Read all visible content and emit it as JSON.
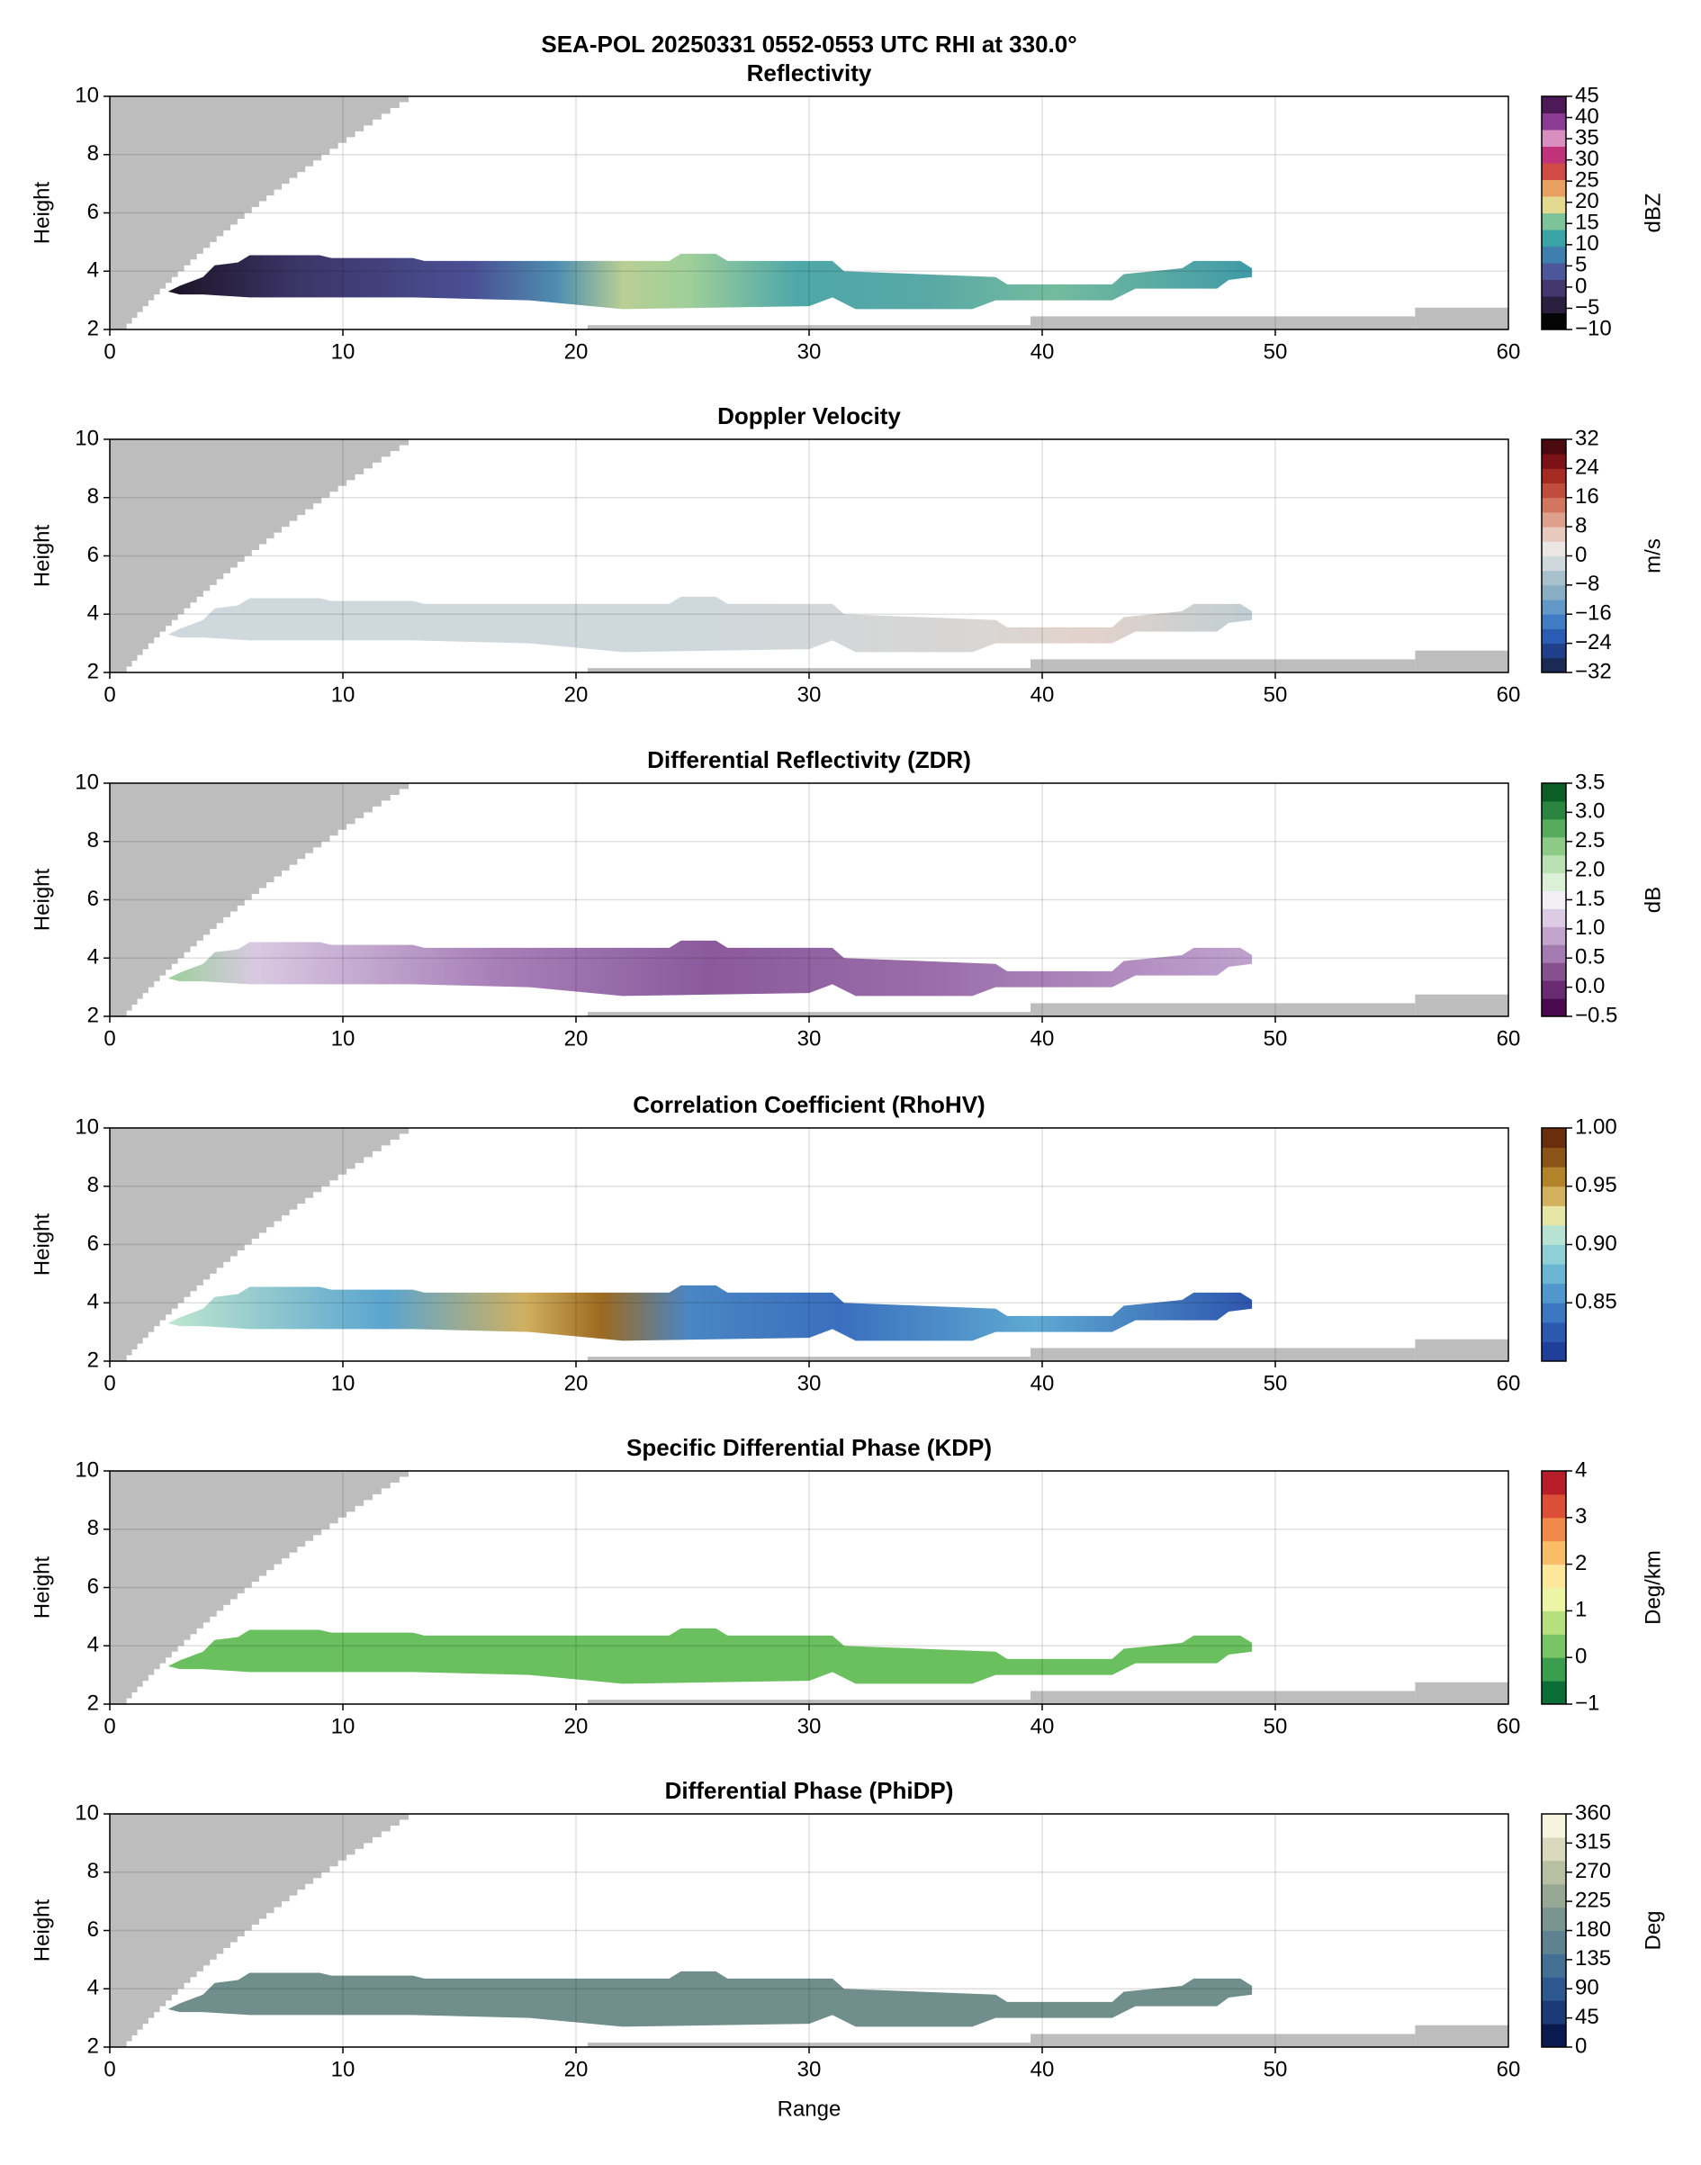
{
  "title": "SEA-POL 20250331 0552-0553 UTC RHI at 330.0°",
  "chart_data": [
    {
      "type": "contour",
      "title": "Reflectivity",
      "ylabel": "Height",
      "xlim": [
        0,
        60
      ],
      "xticks": [
        0,
        10,
        20,
        30,
        40,
        50
      ],
      "ylim": [
        2,
        10
      ],
      "yticks": [
        2,
        4,
        6,
        8,
        10
      ],
      "grid": true,
      "clabel": "dBZ",
      "clim": [
        -10,
        45
      ],
      "cticks": [
        {
          "value": -10,
          "label": "−10"
        },
        {
          "value": -5,
          "label": "−5"
        },
        0,
        5,
        10,
        15,
        20,
        25,
        30,
        35,
        40,
        45
      ],
      "colors": [
        "#050505",
        "#2a1f3f",
        "#43386e",
        "#4c569b",
        "#3f7fae",
        "#3aa3a5",
        "#7cc39a",
        "#e3d98f",
        "#e8a062",
        "#d14a46",
        "#c0327a",
        "#d88fc0",
        "#8a3b93",
        "#4b1a57"
      ]
    },
    {
      "type": "contour",
      "title": "Doppler Velocity",
      "ylabel": "Height",
      "xlim": [
        0,
        60
      ],
      "xticks": [
        0,
        10,
        20,
        30,
        40,
        50
      ],
      "ylim": [
        2,
        10
      ],
      "yticks": [
        2,
        4,
        6,
        8,
        10
      ],
      "grid": true,
      "clabel": "m/s",
      "clim": [
        -32,
        32
      ],
      "cticks": [
        {
          "value": -32,
          "label": "−32"
        },
        {
          "value": -24,
          "label": "−24"
        },
        {
          "value": -16,
          "label": "−16"
        },
        {
          "value": -8,
          "label": "−8"
        },
        0,
        8,
        16,
        24,
        32
      ],
      "colors": [
        "#1a2a52",
        "#1f3f8a",
        "#2a5cb3",
        "#3f7cc4",
        "#6198c6",
        "#89aec4",
        "#a8c0cc",
        "#cfd8dc",
        "#ebe6e4",
        "#e8c9bd",
        "#dea08d",
        "#d27660",
        "#c04d3b",
        "#a52a22",
        "#7d1216",
        "#4a0a0f"
      ]
    },
    {
      "type": "contour",
      "title": "Differential Reflectivity (ZDR)",
      "ylabel": "Height",
      "xlim": [
        0,
        60
      ],
      "xticks": [
        0,
        10,
        20,
        30,
        40,
        50
      ],
      "ylim": [
        2,
        10
      ],
      "yticks": [
        2,
        4,
        6,
        8,
        10
      ],
      "grid": true,
      "clabel": "dB",
      "clim": [
        -0.5,
        3.5
      ],
      "cticks": [
        {
          "value": -0.5,
          "label": "−0.5"
        },
        {
          "value": 0,
          "label": "0.0"
        },
        0.5,
        {
          "value": 1,
          "label": "1.0"
        },
        1.5,
        {
          "value": 2,
          "label": "2.0"
        },
        2.5,
        {
          "value": 3,
          "label": "3.0"
        },
        3.5
      ],
      "colors": [
        "#4b0a4f",
        "#6a2a72",
        "#86508f",
        "#a37bb0",
        "#c2a4cc",
        "#ddcbe3",
        "#f2eef3",
        "#dcefd7",
        "#b9e0b1",
        "#8ccb86",
        "#56ab5c",
        "#2a8540",
        "#0b5e26"
      ]
    },
    {
      "type": "contour",
      "title": "Correlation Coefficient (RhoHV)",
      "ylabel": "Height",
      "xlim": [
        0,
        60
      ],
      "xticks": [
        0,
        10,
        20,
        30,
        40,
        50
      ],
      "ylim": [
        2,
        10
      ],
      "yticks": [
        2,
        4,
        6,
        8,
        10
      ],
      "grid": true,
      "clabel": "",
      "clim": [
        0.8,
        1.0
      ],
      "cticks": [
        0.85,
        {
          "value": 0.9,
          "label": "0.90"
        },
        0.95,
        {
          "value": 1.0,
          "label": "1.00"
        }
      ],
      "colors": [
        "#1f3f9a",
        "#2c59b0",
        "#3c78c2",
        "#4f97cc",
        "#6bb7d3",
        "#8ed0d6",
        "#b7e3d5",
        "#e6e6a6",
        "#d2b15e",
        "#b3832b",
        "#8a5416",
        "#6a2e0c"
      ]
    },
    {
      "type": "contour",
      "title": "Specific Differential Phase (KDP)",
      "ylabel": "Height",
      "xlim": [
        0,
        60
      ],
      "xticks": [
        0,
        10,
        20,
        30,
        40,
        50
      ],
      "ylim": [
        2,
        10
      ],
      "yticks": [
        2,
        4,
        6,
        8,
        10
      ],
      "grid": true,
      "clabel": "Deg/km",
      "clim": [
        -1,
        4
      ],
      "cticks": [
        {
          "value": -1,
          "label": "−1"
        },
        0,
        1,
        2,
        3,
        4
      ],
      "colors": [
        "#0a6e36",
        "#3a9e4e",
        "#79c464",
        "#b6e07e",
        "#ecf5a6",
        "#fde79a",
        "#f9bd6a",
        "#f08a4b",
        "#dc4f36",
        "#b81e2a"
      ]
    },
    {
      "type": "contour",
      "title": "Differential Phase (PhiDP)",
      "ylabel": "Height",
      "xlabel": "Range",
      "xlim": [
        0,
        60
      ],
      "xticks": [
        0,
        10,
        20,
        30,
        40,
        50
      ],
      "ylim": [
        2,
        10
      ],
      "yticks": [
        2,
        4,
        6,
        8,
        10
      ],
      "grid": true,
      "clabel": "Deg",
      "clim": [
        0,
        360
      ],
      "cticks": [
        0,
        45,
        90,
        135,
        180,
        225,
        270,
        315,
        360
      ],
      "colors": [
        "#0a1a4f",
        "#1d3a78",
        "#2d5890",
        "#436f94",
        "#5e8290",
        "#7a9490",
        "#97a895",
        "#b8bfa3",
        "#dad9bd",
        "#f6f4de"
      ]
    }
  ]
}
